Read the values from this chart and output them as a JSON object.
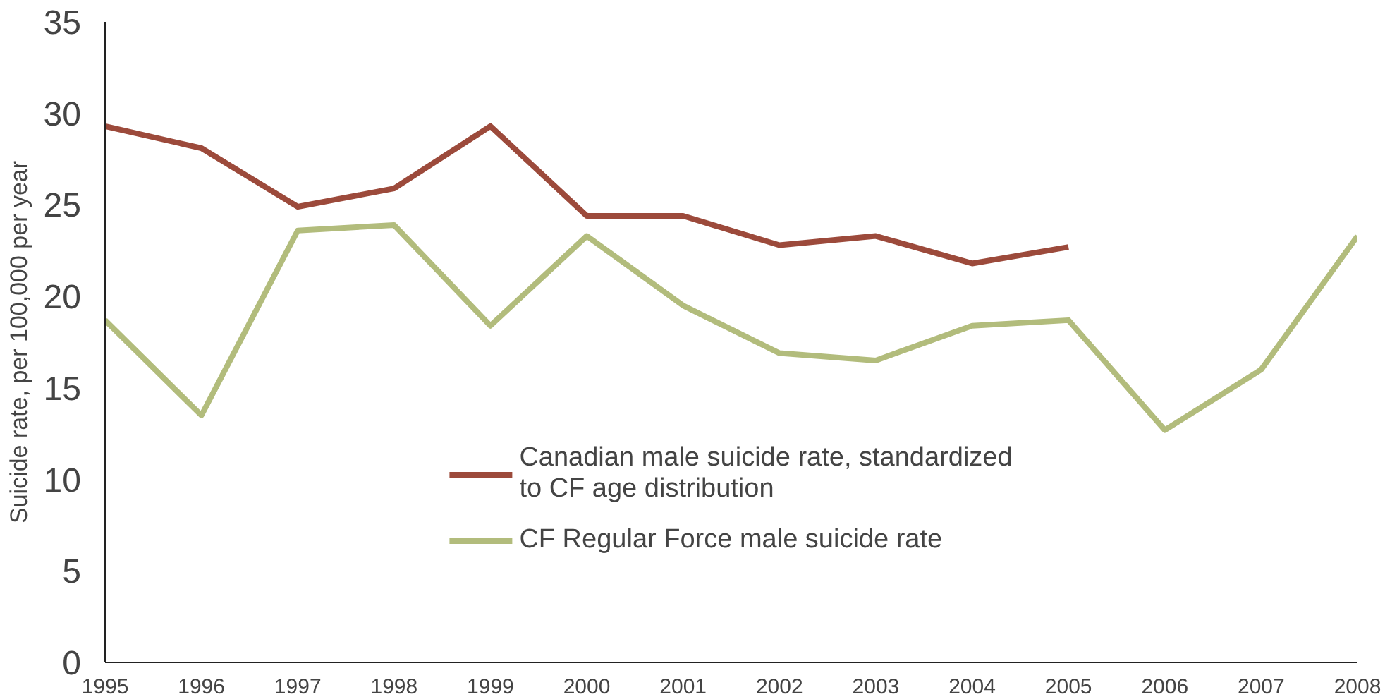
{
  "chart_data": {
    "type": "line",
    "ylabel": "Suicide rate, per 100,000 per year",
    "x": [
      1995,
      1996,
      1997,
      1998,
      1999,
      2000,
      2001,
      2002,
      2003,
      2004,
      2005,
      2006,
      2007,
      2008
    ],
    "xlim": [
      1995,
      2008
    ],
    "xticks": [
      1995,
      1996,
      1997,
      1998,
      1999,
      2000,
      2001,
      2002,
      2003,
      2004,
      2005,
      2006,
      2007,
      2008
    ],
    "ylim": [
      0,
      35
    ],
    "yticks": [
      0,
      5,
      10,
      15,
      20,
      25,
      30,
      35
    ],
    "grid": false,
    "legend": "bottom",
    "marker": "none",
    "line_style": "solid",
    "series": [
      {
        "name": "Canadian male suicide rate, standardized to CF age distribution",
        "color": "#9c4a3b",
        "values": [
          29.3,
          28.1,
          24.9,
          25.9,
          29.3,
          24.4,
          24.4,
          22.8,
          23.3,
          21.8,
          22.7,
          null,
          null,
          null
        ]
      },
      {
        "name": "CF Regular Force male suicide rate",
        "color": "#b2bc7c",
        "values": [
          18.7,
          13.5,
          23.6,
          23.9,
          18.4,
          23.3,
          19.5,
          16.9,
          16.5,
          18.4,
          18.7,
          12.7,
          16.0,
          23.3
        ]
      }
    ]
  }
}
